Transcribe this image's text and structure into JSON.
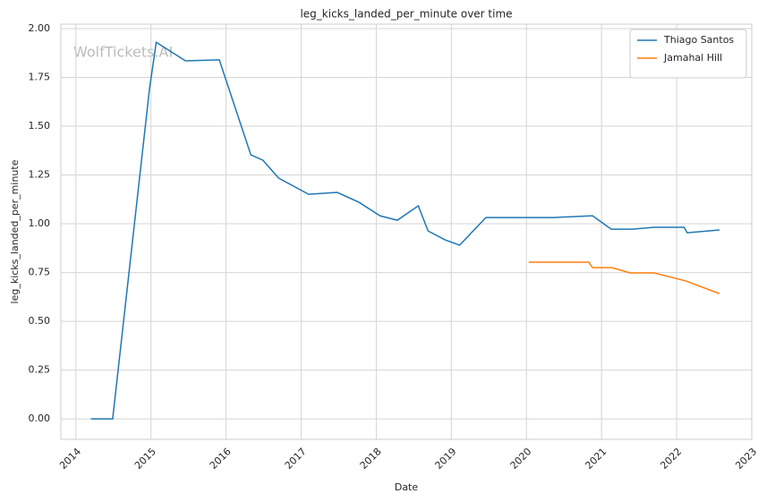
{
  "chart_data": {
    "type": "line",
    "title": "leg_kicks_landed_per_minute over time",
    "xlabel": "Date",
    "ylabel": "leg_kicks_landed_per_minute",
    "watermark": "WolfTickets.AI",
    "series": [
      {
        "name": "Thiago Santos",
        "color": "#1f77b4",
        "x": [
          2014.2,
          2014.49,
          2014.98,
          2015.07,
          2015.46,
          2015.91,
          2016.33,
          2016.49,
          2016.7,
          2017.1,
          2017.48,
          2017.77,
          2018.05,
          2018.28,
          2018.56,
          2018.69,
          2018.92,
          2019.11,
          2019.46,
          2020.36,
          2020.88,
          2021.13,
          2021.41,
          2021.7,
          2022.1,
          2022.14,
          2022.57
        ],
        "values": [
          0,
          0,
          1.69,
          1.93,
          1.835,
          1.84,
          1.353,
          1.326,
          1.234,
          1.151,
          1.161,
          1.11,
          1.041,
          1.018,
          1.092,
          0.963,
          0.917,
          0.89,
          1.032,
          1.032,
          1.041,
          0.972,
          0.972,
          0.982,
          0.982,
          0.954,
          0.968
        ]
      },
      {
        "name": "Jamahal Hill",
        "color": "#ff7f0e",
        "x": [
          2020.03,
          2020.83,
          2020.88,
          2021.14,
          2021.38,
          2021.7,
          2022.13,
          2022.57
        ],
        "values": [
          0.803,
          0.803,
          0.775,
          0.775,
          0.748,
          0.748,
          0.706,
          0.642
        ]
      }
    ],
    "xlim": [
      2013.8,
      2023.0
    ],
    "xticks": [
      2014,
      2015,
      2016,
      2017,
      2018,
      2019,
      2020,
      2021,
      2022,
      2023
    ],
    "ylim": [
      -0.105,
      2.023
    ],
    "yticks": [
      {
        "value": 0,
        "label": "0.00"
      },
      {
        "value": 0.25,
        "label": "0.25"
      },
      {
        "value": 0.5,
        "label": "0.50"
      },
      {
        "value": 0.75,
        "label": "0.75"
      },
      {
        "value": 1,
        "label": "1.00"
      },
      {
        "value": 1.25,
        "label": "1.25"
      },
      {
        "value": 1.5,
        "label": "1.50"
      },
      {
        "value": 1.75,
        "label": "1.75"
      },
      {
        "value": 2,
        "label": "2.00"
      }
    ],
    "grid": true,
    "legend": "upper right"
  }
}
